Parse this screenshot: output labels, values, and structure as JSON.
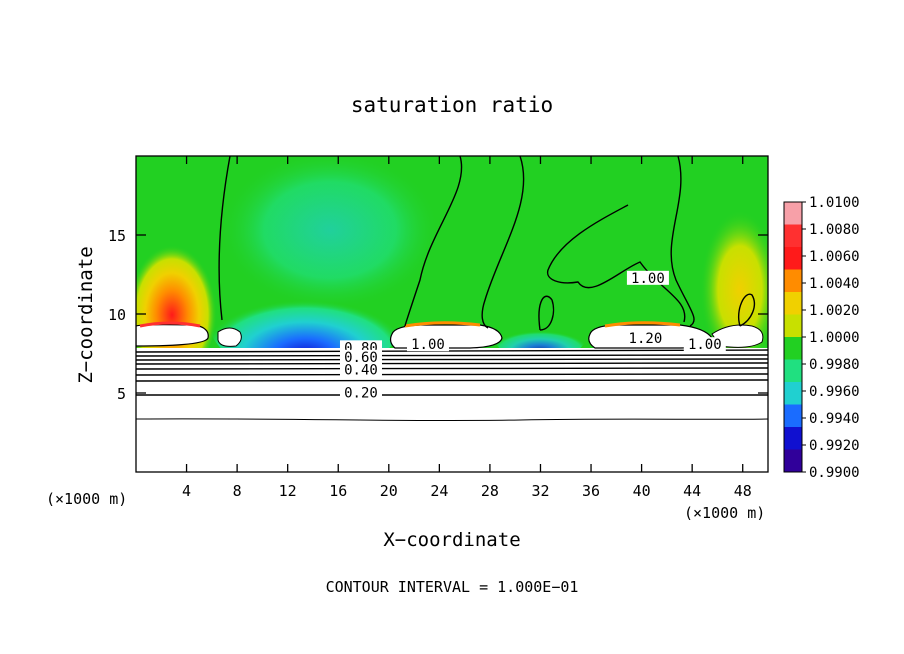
{
  "chart_data": {
    "type": "heatmap",
    "title": "saturation ratio",
    "xlabel": "X−coordinate",
    "ylabel": "Z−coordinate",
    "x_unit_left": "(×1000 m)",
    "x_unit_right": "(×1000 m)",
    "xlim": [
      0,
      50
    ],
    "ylim": [
      0,
      20
    ],
    "x_ticks": [
      4,
      8,
      12,
      16,
      20,
      24,
      28,
      32,
      36,
      40,
      44,
      48
    ],
    "x_tick_labels": [
      "4",
      "8",
      "12",
      "16",
      "20",
      "24",
      "28",
      "32",
      "36",
      "40",
      "44",
      "48"
    ],
    "y_ticks": [
      5,
      10,
      15
    ],
    "y_tick_labels": [
      "5",
      "10",
      "15"
    ],
    "colorbar": {
      "levels": [
        1.01,
        1.008,
        1.006,
        1.004,
        1.002,
        1.0,
        0.998,
        0.996,
        0.994,
        0.992,
        0.99
      ],
      "labels": [
        "1.0100",
        "1.0080",
        "1.0060",
        "1.0040",
        "1.0020",
        "1.0000",
        "0.9980",
        "0.9960",
        "0.9940",
        "0.9920",
        "0.9900"
      ],
      "colors": [
        "#f7a0a8",
        "#ff3030",
        "#ff1a1a",
        "#ff8c00",
        "#f0d000",
        "#c8e000",
        "#22d022",
        "#20e080",
        "#20d0d0",
        "#1a6cff",
        "#1010d0",
        "#30009a"
      ]
    },
    "contour_labels": [
      {
        "text": "0.80",
        "x": 17.8,
        "z": 7.7
      },
      {
        "text": "0.60",
        "x": 17.8,
        "z": 7.1
      },
      {
        "text": "0.40",
        "x": 17.8,
        "z": 6.3
      },
      {
        "text": "0.20",
        "x": 17.8,
        "z": 4.85
      },
      {
        "text": "1.00",
        "x": 23.1,
        "z": 7.9
      },
      {
        "text": "1.20",
        "x": 40.3,
        "z": 8.3
      },
      {
        "text": "1.00",
        "x": 45.0,
        "z": 7.9
      },
      {
        "text": "1.00",
        "x": 40.5,
        "z": 12.1
      }
    ],
    "footer": "CONTOUR INTERVAL = 1.000E−01"
  }
}
